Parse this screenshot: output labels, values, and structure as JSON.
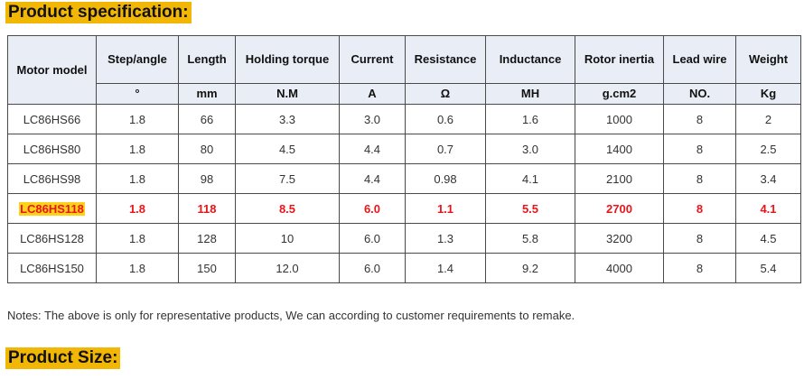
{
  "section_titles": {
    "spec": "Product specification:",
    "size": "Product Size:"
  },
  "table": {
    "headers": {
      "model": "Motor model",
      "step_angle": "Step/angle",
      "length": "Length",
      "holding_torque": "Holding torque",
      "current": "Current",
      "resistance": "Resistance",
      "inductance": "Inductance",
      "rotor_inertia": "Rotor inertia",
      "lead_wire": "Lead wire",
      "weight": "Weight"
    },
    "units": {
      "step_angle": "°",
      "length": "mm",
      "holding_torque": "N.M",
      "current": "A",
      "resistance": "Ω",
      "inductance": "MH",
      "rotor_inertia": "g.cm2",
      "lead_wire": "NO.",
      "weight": "Kg"
    },
    "rows": [
      [
        "LC86HS66",
        "1.8",
        "66",
        "3.3",
        "3.0",
        "0.6",
        "1.6",
        "1000",
        "8",
        "2"
      ],
      [
        "LC86HS80",
        "1.8",
        "80",
        "4.5",
        "4.4",
        "0.7",
        "3.0",
        "1400",
        "8",
        "2.5"
      ],
      [
        "LC86HS98",
        "1.8",
        "98",
        "7.5",
        "4.4",
        "0.98",
        "4.1",
        "2100",
        "8",
        "3.4"
      ],
      [
        "LC86HS118",
        "1.8",
        "118",
        "8.5",
        "6.0",
        "1.1",
        "5.5",
        "2700",
        "8",
        "4.1"
      ],
      [
        "LC86HS128",
        "1.8",
        "128",
        "10",
        "6.0",
        "1.3",
        "5.8",
        "3200",
        "8",
        "4.5"
      ],
      [
        "LC86HS150",
        "1.8",
        "150",
        "12.0",
        "6.0",
        "1.4",
        "9.2",
        "4000",
        "8",
        "5.4"
      ]
    ],
    "highlight_row_index": 3
  },
  "notes": "Notes: The above is only for representative products, We can according to customer requirements to remake.",
  "colors": {
    "title_bg": "#f2b705",
    "highlight_text": "#e8151b",
    "highlight_bg": "#ffd21a",
    "header_bg": "#e9eef6"
  }
}
